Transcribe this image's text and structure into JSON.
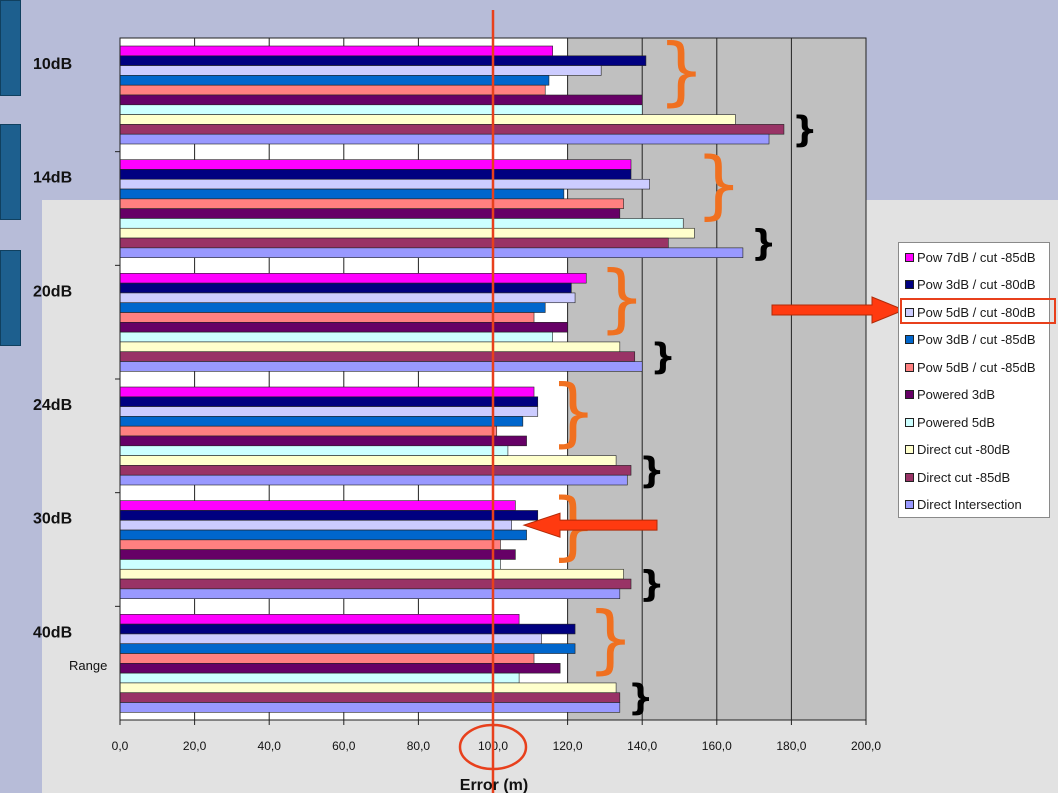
{
  "chart_data": {
    "type": "bar",
    "orientation": "horizontal",
    "title": "",
    "xlabel": "Error (m)",
    "ylabel": "Range",
    "xlim": [
      0,
      200
    ],
    "x_ticks": [
      "0,0",
      "20,0",
      "40,0",
      "60,0",
      "80,0",
      "100,0",
      "120,0",
      "140,0",
      "160,0",
      "180,0",
      "200,0"
    ],
    "grid": "vertical",
    "legend_position": "right",
    "categories": [
      "10dB",
      "14dB",
      "20dB",
      "24dB",
      "30dB",
      "40dB"
    ],
    "series": [
      {
        "name": "Pow 7dB / cut -85dB",
        "color": "#ff00ff",
        "values": [
          116,
          137,
          125,
          111,
          106,
          107
        ]
      },
      {
        "name": "Pow 3dB / cut -80dB",
        "color": "#000080",
        "values": [
          141,
          137,
          121,
          112,
          112,
          122
        ]
      },
      {
        "name": "Pow 5dB / cut -80dB",
        "color": "#ccccff",
        "values": [
          129,
          142,
          122,
          112,
          105,
          113
        ]
      },
      {
        "name": "Pow 3dB / cut -85dB",
        "color": "#0066cc",
        "values": [
          115,
          119,
          114,
          108,
          109,
          122
        ]
      },
      {
        "name": "Pow 5dB / cut -85dB",
        "color": "#ff8080",
        "values": [
          114,
          135,
          111,
          101,
          102,
          111
        ]
      },
      {
        "name": "Powered 3dB",
        "color": "#660066",
        "values": [
          140,
          134,
          120,
          109,
          106,
          118
        ]
      },
      {
        "name": "Powered 5dB",
        "color": "#ccffff",
        "values": [
          140,
          151,
          116,
          104,
          102,
          107
        ]
      },
      {
        "name": "Direct cut -80dB",
        "color": "#ffffcc",
        "values": [
          165,
          154,
          134,
          133,
          135,
          133
        ]
      },
      {
        "name": "Direct cut -85dB",
        "color": "#993366",
        "values": [
          178,
          147,
          138,
          137,
          137,
          134
        ]
      },
      {
        "name": "Direct Intersection",
        "color": "#9999ff",
        "values": [
          174,
          167,
          140,
          136,
          134,
          134
        ]
      }
    ],
    "reference_line": {
      "value": 100,
      "color": "#e8401c"
    }
  },
  "legend_highlight_index": 2
}
